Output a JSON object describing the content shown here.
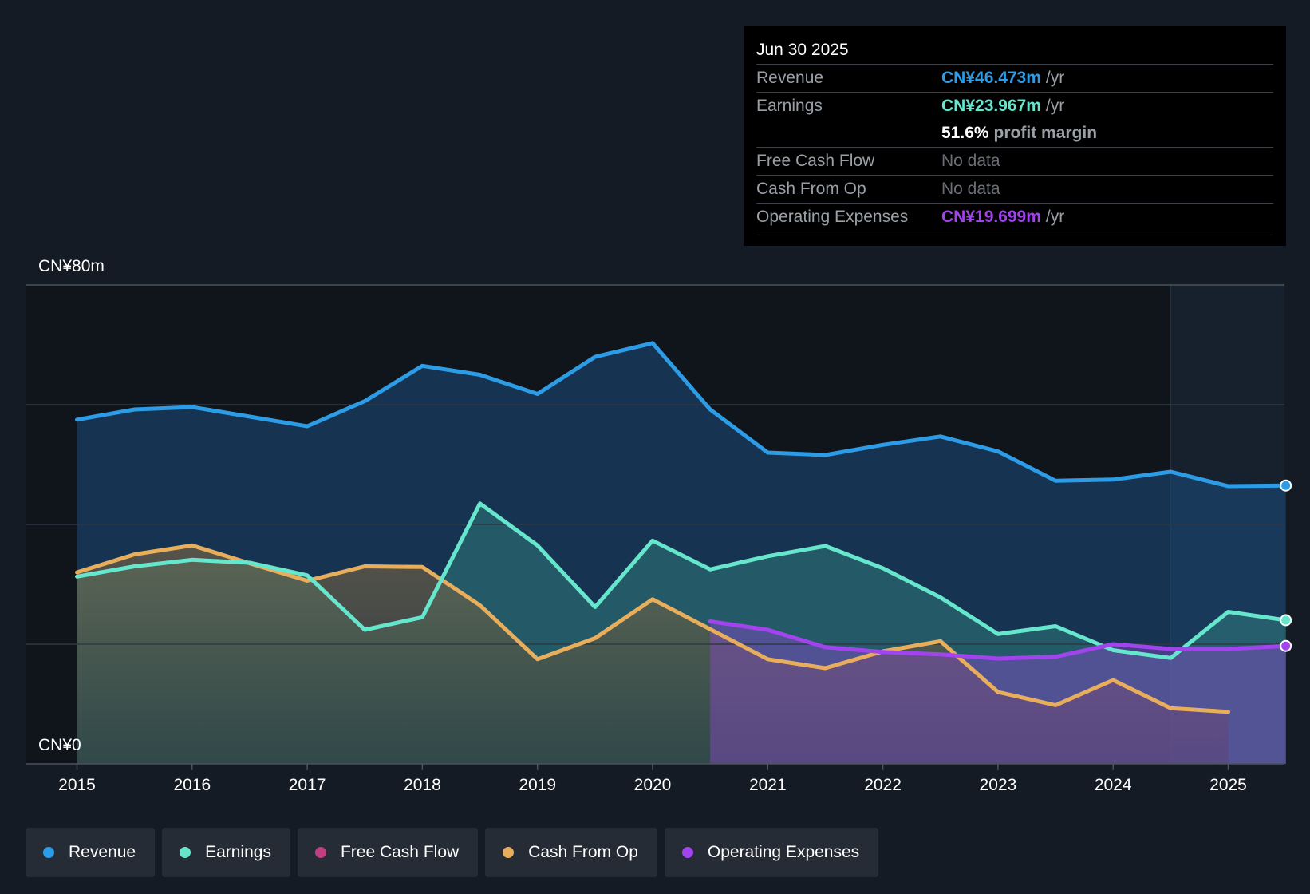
{
  "chart_data": {
    "type": "area",
    "ylim": [
      0,
      80
    ],
    "y_labels": {
      "top": "CN¥80m",
      "bottom": "CN¥0"
    },
    "x_ticks": [
      "2015",
      "2016",
      "2017",
      "2018",
      "2019",
      "2020",
      "2021",
      "2022",
      "2023",
      "2024",
      "2025"
    ],
    "series": [
      {
        "name": "Revenue",
        "color": "#2d9ce6",
        "points": [
          [
            2015.0,
            57.5
          ],
          [
            2015.5,
            59.2
          ],
          [
            2016.0,
            59.6
          ],
          [
            2016.5,
            58.0
          ],
          [
            2017.0,
            56.4
          ],
          [
            2017.5,
            60.6
          ],
          [
            2018.0,
            66.5
          ],
          [
            2018.5,
            65.0
          ],
          [
            2019.0,
            61.8
          ],
          [
            2019.5,
            68.0
          ],
          [
            2020.0,
            70.3
          ],
          [
            2020.5,
            59.2
          ],
          [
            2021.0,
            52.0
          ],
          [
            2021.5,
            51.6
          ],
          [
            2022.0,
            53.3
          ],
          [
            2022.5,
            54.7
          ],
          [
            2023.0,
            52.2
          ],
          [
            2023.5,
            47.3
          ],
          [
            2024.0,
            47.5
          ],
          [
            2024.5,
            48.8
          ],
          [
            2025.0,
            46.4
          ],
          [
            2025.5,
            46.5
          ]
        ]
      },
      {
        "name": "Earnings",
        "color": "#66e6cc",
        "points": [
          [
            2015.0,
            31.3
          ],
          [
            2015.5,
            33.0
          ],
          [
            2016.0,
            34.1
          ],
          [
            2016.5,
            33.6
          ],
          [
            2017.0,
            31.5
          ],
          [
            2017.5,
            22.4
          ],
          [
            2018.0,
            24.5
          ],
          [
            2018.5,
            43.5
          ],
          [
            2019.0,
            36.5
          ],
          [
            2019.5,
            26.2
          ],
          [
            2020.0,
            37.3
          ],
          [
            2020.5,
            32.5
          ],
          [
            2021.0,
            34.7
          ],
          [
            2021.5,
            36.4
          ],
          [
            2022.0,
            32.7
          ],
          [
            2022.5,
            27.8
          ],
          [
            2023.0,
            21.7
          ],
          [
            2023.5,
            23.0
          ],
          [
            2024.0,
            19.0
          ],
          [
            2024.5,
            17.7
          ],
          [
            2025.0,
            25.4
          ],
          [
            2025.5,
            24.0
          ]
        ]
      },
      {
        "name": "Free Cash Flow",
        "color": "#c03f80",
        "points": []
      },
      {
        "name": "Cash From Op",
        "color": "#e8ae5c",
        "points": [
          [
            2015.0,
            32.0
          ],
          [
            2015.5,
            35.0
          ],
          [
            2016.0,
            36.5
          ],
          [
            2016.5,
            33.5
          ],
          [
            2017.0,
            30.6
          ],
          [
            2017.5,
            33.0
          ],
          [
            2018.0,
            32.9
          ],
          [
            2018.5,
            26.5
          ],
          [
            2019.0,
            17.5
          ],
          [
            2019.5,
            21.0
          ],
          [
            2020.0,
            27.5
          ],
          [
            2020.5,
            22.5
          ],
          [
            2021.0,
            17.5
          ],
          [
            2021.5,
            16.0
          ],
          [
            2022.0,
            18.8
          ],
          [
            2022.5,
            20.5
          ],
          [
            2023.0,
            12.0
          ],
          [
            2023.5,
            9.8
          ],
          [
            2024.0,
            14.0
          ],
          [
            2024.5,
            9.3
          ],
          [
            2025.0,
            8.7
          ]
        ]
      },
      {
        "name": "Operating Expenses",
        "color": "#a244ee",
        "points": [
          [
            2020.5,
            23.8
          ],
          [
            2021.0,
            22.4
          ],
          [
            2021.5,
            19.5
          ],
          [
            2022.0,
            18.7
          ],
          [
            2022.5,
            18.3
          ],
          [
            2023.0,
            17.6
          ],
          [
            2023.5,
            17.9
          ],
          [
            2024.0,
            20.0
          ],
          [
            2024.5,
            19.2
          ],
          [
            2025.0,
            19.2
          ],
          [
            2025.5,
            19.7
          ]
        ]
      }
    ]
  },
  "tooltip": {
    "date": "Jun 30 2025",
    "rows": {
      "revenue": {
        "label": "Revenue",
        "value": "CN¥46.473m",
        "unit": "/yr"
      },
      "earnings": {
        "label": "Earnings",
        "value": "CN¥23.967m",
        "unit": "/yr"
      },
      "margin": {
        "value": "51.6%",
        "unit": "profit margin"
      },
      "fcf": {
        "label": "Free Cash Flow",
        "value": "No data"
      },
      "cfo": {
        "label": "Cash From Op",
        "value": "No data"
      },
      "opex": {
        "label": "Operating Expenses",
        "value": "CN¥19.699m",
        "unit": "/yr"
      }
    }
  },
  "legend": {
    "items": [
      {
        "label": "Revenue",
        "color": "#2d9ce6"
      },
      {
        "label": "Earnings",
        "color": "#66e6cc"
      },
      {
        "label": "Free Cash Flow",
        "color": "#c03f80"
      },
      {
        "label": "Cash From Op",
        "color": "#e8ae5c"
      },
      {
        "label": "Operating Expenses",
        "color": "#a244ee"
      }
    ]
  }
}
